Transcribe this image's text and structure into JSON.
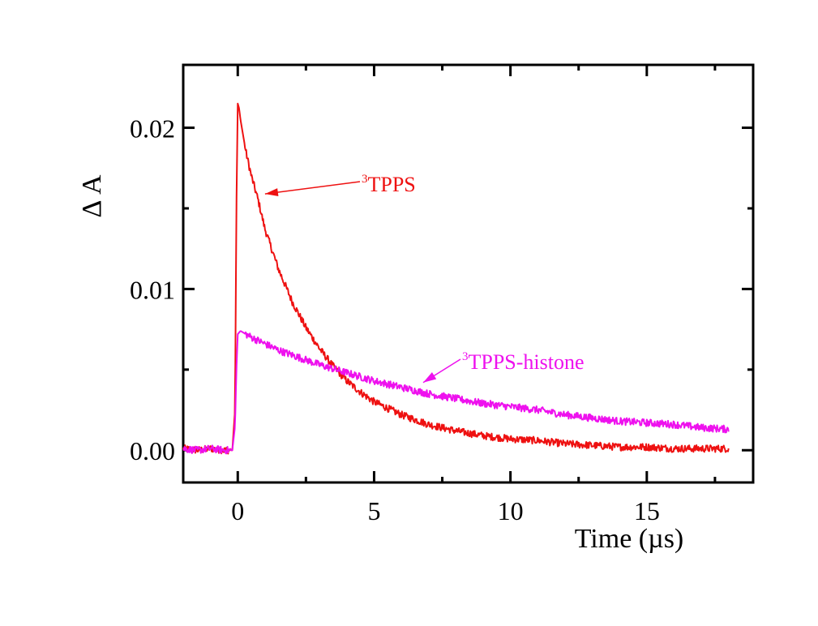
{
  "chart_data": {
    "type": "line",
    "title": "",
    "xlabel": "Time (µs)",
    "ylabel": "Δ A",
    "xlim": [
      -2,
      18.9
    ],
    "ylim": [
      -0.002,
      0.0239
    ],
    "x_ticks": [
      0,
      5,
      10,
      15
    ],
    "x_tick_labels": [
      "0",
      "5",
      "10",
      "15"
    ],
    "y_ticks": [
      0.0,
      0.01,
      0.02
    ],
    "y_tick_labels": [
      "0.00",
      "0.01",
      "0.02"
    ],
    "grid": false,
    "legend": "none",
    "series": [
      {
        "name": "TPPS",
        "color": "#ee1111",
        "points": [
          [
            -2,
            0.0001
          ],
          [
            -1.5,
            0.0
          ],
          [
            -1,
            0.0001
          ],
          [
            -0.5,
            0.0
          ],
          [
            -0.2,
            0.0
          ],
          [
            -0.1,
            0.0025
          ],
          [
            -0.05,
            0.015
          ],
          [
            0.0,
            0.0215
          ],
          [
            0.05,
            0.0212
          ],
          [
            0.1,
            0.0205
          ],
          [
            0.2,
            0.0195
          ],
          [
            0.3,
            0.0185
          ],
          [
            0.5,
            0.017
          ],
          [
            0.75,
            0.0155
          ],
          [
            1,
            0.0137
          ],
          [
            1.5,
            0.0112
          ],
          [
            2,
            0.0092
          ],
          [
            2.5,
            0.0076
          ],
          [
            3,
            0.0063
          ],
          [
            3.5,
            0.0052
          ],
          [
            4,
            0.0043
          ],
          [
            4.5,
            0.0036
          ],
          [
            5,
            0.003
          ],
          [
            6,
            0.0022
          ],
          [
            7,
            0.0016
          ],
          [
            8,
            0.0012
          ],
          [
            9,
            0.0009
          ],
          [
            10,
            0.0007
          ],
          [
            11,
            0.0006
          ],
          [
            12,
            0.0004
          ],
          [
            13,
            0.0003
          ],
          [
            14,
            0.0002
          ],
          [
            15,
            0.0002
          ],
          [
            16,
            0.0001
          ],
          [
            17,
            0.0001
          ],
          [
            18,
            0.0001
          ]
        ]
      },
      {
        "name": "TPPS-histone",
        "color": "#ee11ee",
        "points": [
          [
            -2,
            0.0001
          ],
          [
            -1.5,
            0.0
          ],
          [
            -1,
            0.0001
          ],
          [
            -0.5,
            0.0
          ],
          [
            -0.2,
            0.0
          ],
          [
            -0.1,
            0.0015
          ],
          [
            -0.05,
            0.005
          ],
          [
            0.0,
            0.0072
          ],
          [
            0.1,
            0.0074
          ],
          [
            0.3,
            0.0072
          ],
          [
            0.5,
            0.007
          ],
          [
            1,
            0.0066
          ],
          [
            1.5,
            0.0062
          ],
          [
            2,
            0.0059
          ],
          [
            3,
            0.0053
          ],
          [
            4,
            0.0048
          ],
          [
            5,
            0.0043
          ],
          [
            6,
            0.0039
          ],
          [
            7,
            0.0035
          ],
          [
            8,
            0.0032
          ],
          [
            9,
            0.0029
          ],
          [
            10,
            0.0027
          ],
          [
            11,
            0.0025
          ],
          [
            12,
            0.0022
          ],
          [
            13,
            0.002
          ],
          [
            14,
            0.0018
          ],
          [
            15,
            0.0017
          ],
          [
            16,
            0.0016
          ],
          [
            17,
            0.0014
          ],
          [
            18,
            0.0013
          ]
        ]
      }
    ],
    "annotations": [
      {
        "sup": "3",
        "text": "TPPS",
        "color": "#ee1111",
        "target": [
          1.0,
          0.0159
        ]
      },
      {
        "sup": "3",
        "text": "TPPS-histone",
        "color": "#ee11ee",
        "target": [
          6.8,
          0.0042
        ]
      }
    ]
  }
}
